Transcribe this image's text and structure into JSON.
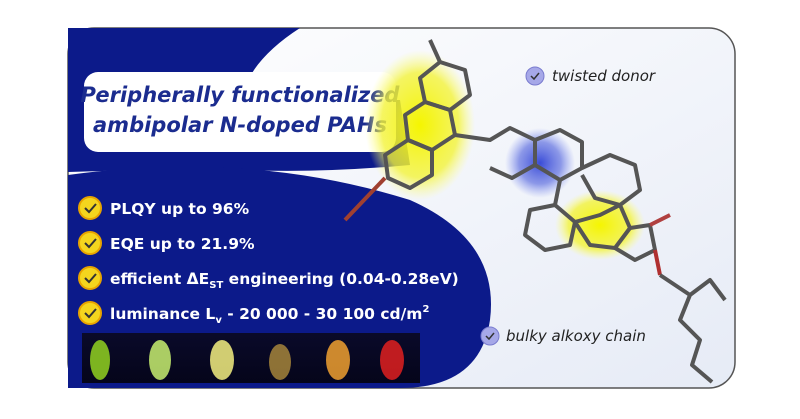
{
  "title": {
    "lines": [
      "Peripherally functionalized",
      "ambipolar N-doped PAHs"
    ]
  },
  "bullets": [
    {
      "parts": [
        "PLQY up to 96%"
      ]
    },
    {
      "parts": [
        "EQE up to 21.9%"
      ]
    },
    {
      "parts": [
        "efficient ΔE",
        "ST",
        " engineering (0.04-0.28eV)"
      ]
    },
    {
      "parts": [
        "luminance L",
        "v",
        " - 20 000 - 30 100 cd/m",
        "2"
      ]
    }
  ],
  "labels": [
    "twisted donor",
    "bulky alkoxy chain"
  ]
}
